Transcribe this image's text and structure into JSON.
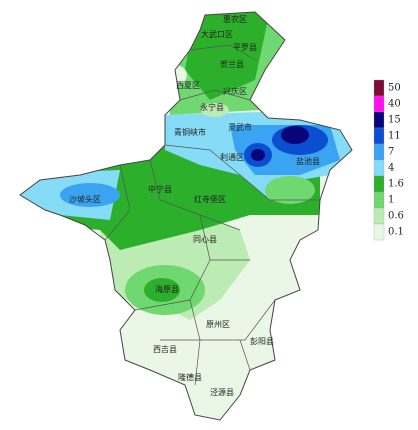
{
  "map": {
    "places": [
      "惠农区",
      "大武口区",
      "平罗县",
      "贺兰县",
      "西夏区",
      "兴庆区",
      "永宁县",
      "青铜峡市",
      "灵武市",
      "利通区",
      "盐池县",
      "沙坡头区",
      "中宁县",
      "红寺堡区",
      "同心县",
      "海原县",
      "原州区",
      "彭阳县",
      "西吉县",
      "隆德县",
      "泾源县"
    ],
    "legend": [
      {
        "label": "50",
        "color": "#7d0b33"
      },
      {
        "label": "40",
        "color": "#ff10f0"
      },
      {
        "label": "15",
        "color": "#06067a"
      },
      {
        "label": "11",
        "color": "#0a4fd0"
      },
      {
        "label": "7",
        "color": "#3aa4f2"
      },
      {
        "label": "4",
        "color": "#86dcf6"
      },
      {
        "label": "1.6",
        "color": "#2cb02c"
      },
      {
        "label": "1",
        "color": "#70d870"
      },
      {
        "label": "0.6",
        "color": "#bdebb4"
      },
      {
        "label": "0.1",
        "color": "#eaf7e6"
      }
    ]
  }
}
